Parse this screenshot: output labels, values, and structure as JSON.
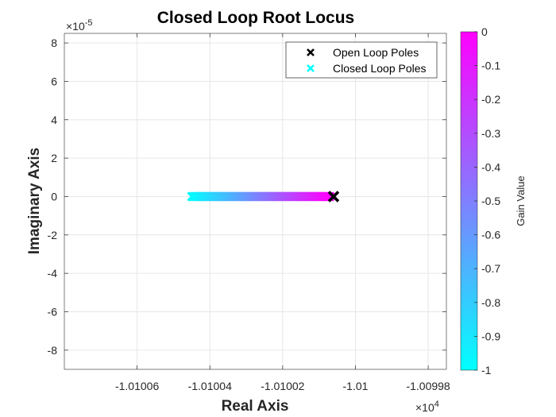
{
  "chart_data": {
    "type": "scatter",
    "title": "Closed Loop Root Locus",
    "xlabel": "Real Axis",
    "ylabel": "Imaginary Axis",
    "x_exponent": "×10",
    "x_exponent_power": "4",
    "y_exponent": "×10",
    "y_exponent_power": "-5",
    "xlim": [
      -1.01008,
      -1.009975
    ],
    "ylim": [
      -9,
      8.5
    ],
    "xticks": [
      -1.01006,
      -1.01004,
      -1.01002,
      -1.01,
      -1.00998
    ],
    "xtick_labels": [
      "-1.01006",
      "-1.01004",
      "-1.01002",
      "-1.01",
      "-1.00998"
    ],
    "yticks": [
      -8,
      -6,
      -4,
      -2,
      0,
      2,
      4,
      6,
      8
    ],
    "ytick_labels": [
      "-8",
      "-6",
      "-4",
      "-2",
      "0",
      "2",
      "4",
      "6",
      "8"
    ],
    "grid": true,
    "legend_position": "top-right",
    "series": [
      {
        "name": "Open Loop Poles",
        "marker": "x",
        "color": "#000000",
        "points": [
          {
            "x": -1.010006,
            "y": 0
          }
        ]
      },
      {
        "name": "Closed Loop Poles",
        "marker": "x",
        "color": "#00ffff",
        "x_start": -1.010045,
        "x_end": -1.010007,
        "y": 0,
        "gain_start": -1,
        "gain_end": 0
      }
    ],
    "colorbar": {
      "label": "Gain Value",
      "colormap": "cool",
      "color_min": "#00ffff",
      "color_max": "#ff00ff",
      "range": [
        -1,
        0
      ],
      "ticks": [
        0,
        -0.1,
        -0.2,
        -0.3,
        -0.4,
        -0.5,
        -0.6,
        -0.7,
        -0.8,
        -0.9,
        -1
      ],
      "tick_labels": [
        "0",
        "-0.1",
        "-0.2",
        "-0.3",
        "-0.4",
        "-0.5",
        "-0.6",
        "-0.7",
        "-0.8",
        "-0.9",
        "-1"
      ]
    }
  }
}
